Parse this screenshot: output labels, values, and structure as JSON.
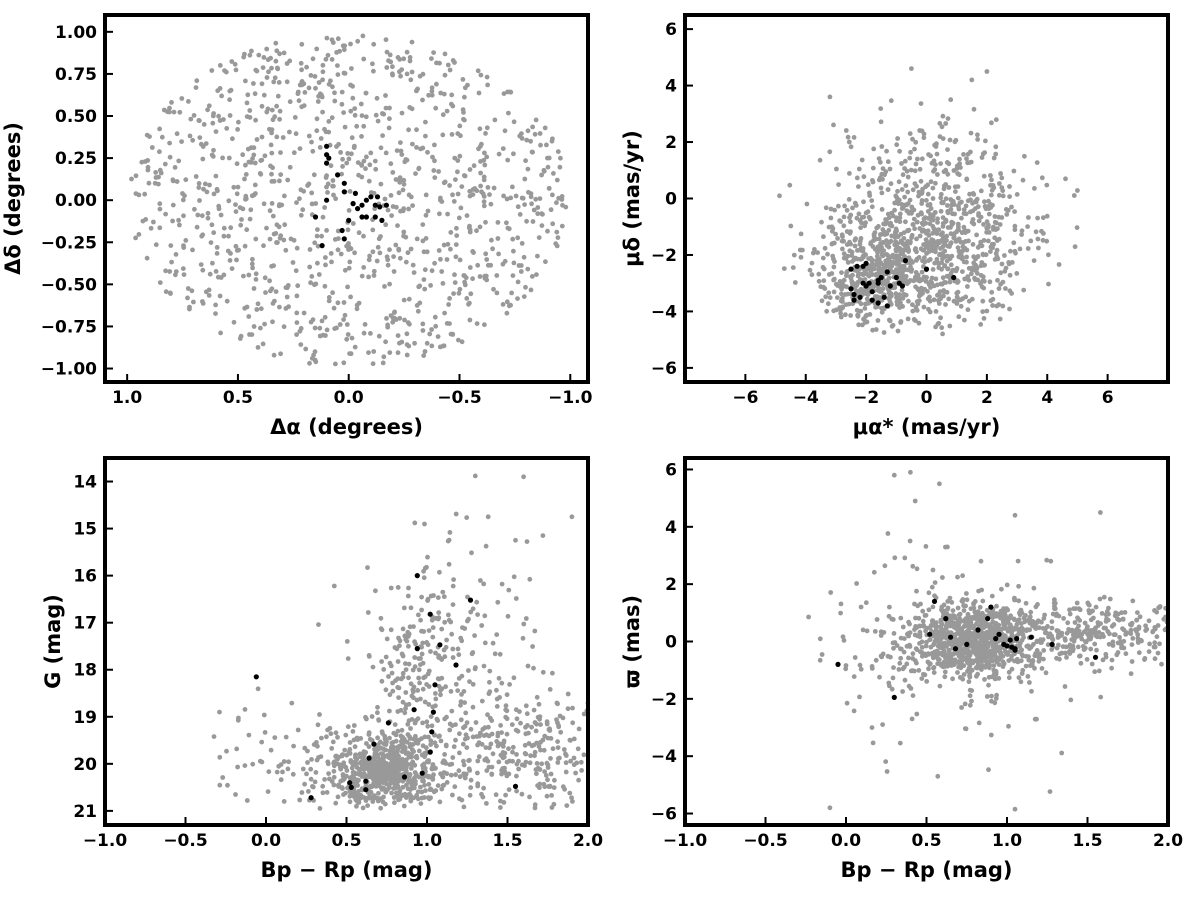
{
  "colors": {
    "field": "#999999",
    "member": "#000000",
    "frame": "#000000"
  },
  "chart_data": [
    {
      "id": "sky",
      "type": "scatter",
      "xlabel": "Δα (degrees)",
      "ylabel": "Δδ (degrees)",
      "xlim": [
        1.1,
        -1.08
      ],
      "ylim": [
        -1.08,
        1.1
      ],
      "xticks": [
        1.0,
        0.5,
        0.0,
        -0.5,
        -1.0
      ],
      "xtick_labels": [
        "1.0",
        "0.5",
        "0.0",
        "−0.5",
        "−1.0"
      ],
      "yticks": [
        -1.0,
        -0.75,
        -0.5,
        -0.25,
        0.0,
        0.25,
        0.5,
        0.75,
        1.0
      ],
      "ytick_labels": [
        "−1.00",
        "−0.75",
        "−0.50",
        "−0.25",
        "0.00",
        "0.25",
        "0.50",
        "0.75",
        "1.00"
      ],
      "series": [
        {
          "role": "field",
          "distribution": "uniform disk",
          "center": [
            0,
            0
          ],
          "radius": 1.0,
          "count": 1100
        },
        {
          "role": "members",
          "points": [
            [
              0.1,
              0.32
            ],
            [
              0.1,
              0.27
            ],
            [
              0.1,
              0.22
            ],
            [
              0.09,
              0.25
            ],
            [
              0.05,
              0.15
            ],
            [
              0.02,
              0.05
            ],
            [
              0.02,
              0.1
            ],
            [
              -0.03,
              0.04
            ],
            [
              0.0,
              -0.12
            ],
            [
              -0.02,
              -0.02
            ],
            [
              -0.04,
              -0.05
            ],
            [
              -0.06,
              -0.1
            ],
            [
              -0.06,
              -0.03
            ],
            [
              -0.08,
              0.0
            ],
            [
              -0.1,
              0.02
            ],
            [
              -0.13,
              0.02
            ],
            [
              -0.08,
              -0.1
            ],
            [
              -0.12,
              -0.1
            ],
            [
              -0.15,
              -0.12
            ],
            [
              -0.12,
              -0.03
            ],
            [
              -0.14,
              -0.04
            ],
            [
              -0.17,
              -0.03
            ],
            [
              0.03,
              -0.18
            ],
            [
              0.02,
              -0.23
            ],
            [
              0.12,
              -0.27
            ],
            [
              0.1,
              0.0
            ],
            [
              0.15,
              -0.1
            ]
          ]
        }
      ]
    },
    {
      "id": "pm",
      "type": "scatter",
      "xlabel": "μα* (mas/yr)",
      "ylabel": "μδ (mas/yr)",
      "xlim": [
        -8,
        8
      ],
      "ylim": [
        -6.5,
        6.5
      ],
      "xticks": [
        -6,
        -4,
        -2,
        0,
        2,
        4,
        6
      ],
      "xtick_labels": [
        "−6",
        "−4",
        "−2",
        "0",
        "2",
        "4",
        "6"
      ],
      "yticks": [
        -6,
        -4,
        -2,
        0,
        2,
        4,
        6
      ],
      "ytick_labels": [
        "−6",
        "−4",
        "−2",
        "0",
        "2",
        "4",
        "6"
      ],
      "series": [
        {
          "role": "field",
          "distribution": "clustered",
          "center": [
            -0.3,
            -1.3
          ],
          "count": 1300
        },
        {
          "role": "members",
          "points": [
            [
              -2.5,
              -2.5
            ],
            [
              -2.3,
              -2.4
            ],
            [
              -2.1,
              -2.4
            ],
            [
              -2.0,
              -2.3
            ],
            [
              -2.5,
              -3.2
            ],
            [
              -2.4,
              -3.4
            ],
            [
              -2.4,
              -3.6
            ],
            [
              -2.2,
              -3.5
            ],
            [
              -2.1,
              -3.0
            ],
            [
              -2.0,
              -3.1
            ],
            [
              -1.9,
              -3.0
            ],
            [
              -1.8,
              -3.3
            ],
            [
              -1.8,
              -3.6
            ],
            [
              -1.6,
              -3.0
            ],
            [
              -1.6,
              -2.9
            ],
            [
              -1.5,
              -2.8
            ],
            [
              -1.4,
              -3.5
            ],
            [
              -1.3,
              -2.6
            ],
            [
              -1.2,
              -3.1
            ],
            [
              -1.0,
              -2.8
            ],
            [
              -0.9,
              -3.0
            ],
            [
              -0.8,
              -3.1
            ],
            [
              -0.7,
              -2.2
            ],
            [
              -1.3,
              -3.8
            ],
            [
              -1.6,
              -3.7
            ],
            [
              0.0,
              -2.5
            ],
            [
              0.9,
              -2.8
            ]
          ]
        }
      ]
    },
    {
      "id": "cmd",
      "type": "scatter",
      "xlabel": "Bp − Rp (mag)",
      "ylabel": "G (mag)",
      "xlim": [
        -1.0,
        2.0
      ],
      "ylim": [
        21.3,
        13.5
      ],
      "xticks": [
        -1.0,
        -0.5,
        0.0,
        0.5,
        1.0,
        1.5,
        2.0
      ],
      "xtick_labels": [
        "−1.0",
        "−0.5",
        "0.0",
        "0.5",
        "1.0",
        "1.5",
        "2.0"
      ],
      "yticks": [
        14,
        15,
        16,
        17,
        18,
        19,
        20,
        21
      ],
      "ytick_labels": [
        "14",
        "15",
        "16",
        "17",
        "18",
        "19",
        "20",
        "21"
      ],
      "series": [
        {
          "role": "field",
          "distribution": "clustered",
          "count": 1300
        },
        {
          "role": "members",
          "points": [
            [
              0.28,
              20.72
            ],
            [
              0.53,
              20.5
            ],
            [
              0.52,
              20.4
            ],
            [
              0.62,
              20.55
            ],
            [
              0.62,
              20.37
            ],
            [
              0.86,
              20.28
            ],
            [
              0.97,
              20.2
            ],
            [
              0.64,
              19.88
            ],
            [
              0.67,
              19.58
            ],
            [
              1.02,
              19.75
            ],
            [
              1.03,
              19.32
            ],
            [
              0.76,
              19.13
            ],
            [
              0.92,
              18.85
            ],
            [
              1.04,
              18.9
            ],
            [
              1.05,
              18.32
            ],
            [
              1.18,
              17.9
            ],
            [
              0.94,
              17.55
            ],
            [
              1.08,
              17.47
            ],
            [
              1.02,
              16.82
            ],
            [
              1.27,
              16.52
            ],
            [
              0.94,
              16.0
            ],
            [
              1.55,
              20.48
            ],
            [
              -0.06,
              18.15
            ]
          ]
        }
      ]
    },
    {
      "id": "plx",
      "type": "scatter",
      "xlabel": "Bp − Rp (mag)",
      "ylabel": "ϖ (mas)",
      "xlim": [
        -1.0,
        2.0
      ],
      "ylim": [
        -6.4,
        6.4
      ],
      "xticks": [
        -1.0,
        -0.5,
        0.0,
        0.5,
        1.0,
        1.5,
        2.0
      ],
      "xtick_labels": [
        "−1.0",
        "−0.5",
        "0.0",
        "0.5",
        "1.0",
        "1.5",
        "2.0"
      ],
      "yticks": [
        -6,
        -4,
        -2,
        0,
        2,
        4,
        6
      ],
      "ytick_labels": [
        "−6",
        "−4",
        "−2",
        "0",
        "2",
        "4",
        "6"
      ],
      "series": [
        {
          "role": "field",
          "distribution": "clustered",
          "center": [
            0.8,
            0.0
          ],
          "count": 1300
        },
        {
          "role": "members",
          "points": [
            [
              0.55,
              1.4
            ],
            [
              0.52,
              0.25
            ],
            [
              0.62,
              0.8
            ],
            [
              0.68,
              -0.25
            ],
            [
              0.65,
              0.15
            ],
            [
              0.75,
              -0.1
            ],
            [
              0.82,
              0.4
            ],
            [
              0.88,
              0.8
            ],
            [
              0.9,
              1.2
            ],
            [
              0.95,
              0.25
            ],
            [
              0.93,
              0.1
            ],
            [
              0.98,
              -0.1
            ],
            [
              1.02,
              0.05
            ],
            [
              1.03,
              -0.2
            ],
            [
              1.05,
              -0.3
            ],
            [
              1.06,
              0.1
            ],
            [
              1.15,
              0.15
            ],
            [
              1.28,
              -0.1
            ],
            [
              1.55,
              -0.55
            ],
            [
              -0.05,
              -0.8
            ],
            [
              0.3,
              -1.95
            ],
            [
              1.05,
              -0.25
            ],
            [
              1.0,
              -0.15
            ]
          ]
        }
      ]
    }
  ]
}
